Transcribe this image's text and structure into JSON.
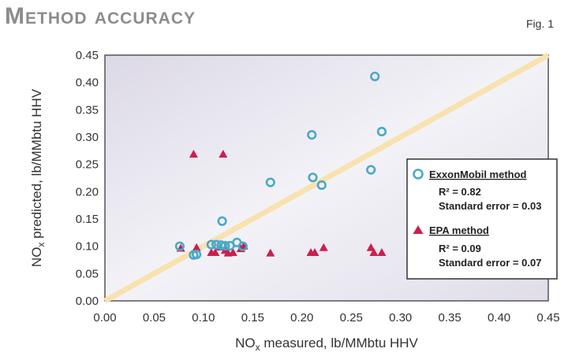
{
  "title": "Method accuracy",
  "fig_label": "Fig. 1",
  "chart_data": {
    "type": "scatter",
    "xlabel_main": "NO",
    "xlabel_sub": "x",
    "xlabel_rest": " measured, lb/MMbtu HHV",
    "ylabel_main": "NO",
    "ylabel_sub": "x",
    "ylabel_rest": " predicted, lb/MMbtu HHV",
    "xlim": [
      0,
      0.45
    ],
    "ylim": [
      0,
      0.45
    ],
    "x_ticks": [
      "0.00",
      "0.05",
      "0.10",
      "0.15",
      "0.20",
      "0.25",
      "0.30",
      "0.35",
      "0.40",
      "0.45"
    ],
    "y_ticks": [
      "0.00",
      "0.05",
      "0.10",
      "0.15",
      "0.20",
      "0.25",
      "0.30",
      "0.35",
      "0.40",
      "0.45"
    ],
    "identity_line": true,
    "series": [
      {
        "name": "ExxonMobil method",
        "marker": "circle",
        "color": "#4aa8c8",
        "stats": [
          "R² = 0.82",
          "Standard error = 0.03"
        ],
        "points": [
          [
            0.076,
            0.1
          ],
          [
            0.09,
            0.084
          ],
          [
            0.093,
            0.085
          ],
          [
            0.108,
            0.103
          ],
          [
            0.113,
            0.103
          ],
          [
            0.118,
            0.102
          ],
          [
            0.122,
            0.101
          ],
          [
            0.127,
            0.101
          ],
          [
            0.134,
            0.107
          ],
          [
            0.119,
            0.146
          ],
          [
            0.14,
            0.1
          ],
          [
            0.168,
            0.217
          ],
          [
            0.21,
            0.304
          ],
          [
            0.211,
            0.226
          ],
          [
            0.22,
            0.212
          ],
          [
            0.27,
            0.24
          ],
          [
            0.274,
            0.411
          ],
          [
            0.281,
            0.31
          ]
        ]
      },
      {
        "name": "EPA method",
        "marker": "triangle",
        "color": "#cc1f4f",
        "stats": [
          "R² = 0.09",
          "Standard error = 0.07"
        ],
        "points": [
          [
            0.077,
            0.096
          ],
          [
            0.09,
            0.268
          ],
          [
            0.093,
            0.097
          ],
          [
            0.108,
            0.088
          ],
          [
            0.112,
            0.088
          ],
          [
            0.117,
            0.098
          ],
          [
            0.12,
            0.268
          ],
          [
            0.122,
            0.092
          ],
          [
            0.125,
            0.087
          ],
          [
            0.13,
            0.088
          ],
          [
            0.138,
            0.095
          ],
          [
            0.141,
            0.1
          ],
          [
            0.168,
            0.087
          ],
          [
            0.209,
            0.088
          ],
          [
            0.213,
            0.088
          ],
          [
            0.222,
            0.097
          ],
          [
            0.27,
            0.097
          ],
          [
            0.273,
            0.088
          ],
          [
            0.281,
            0.088
          ]
        ]
      }
    ]
  }
}
